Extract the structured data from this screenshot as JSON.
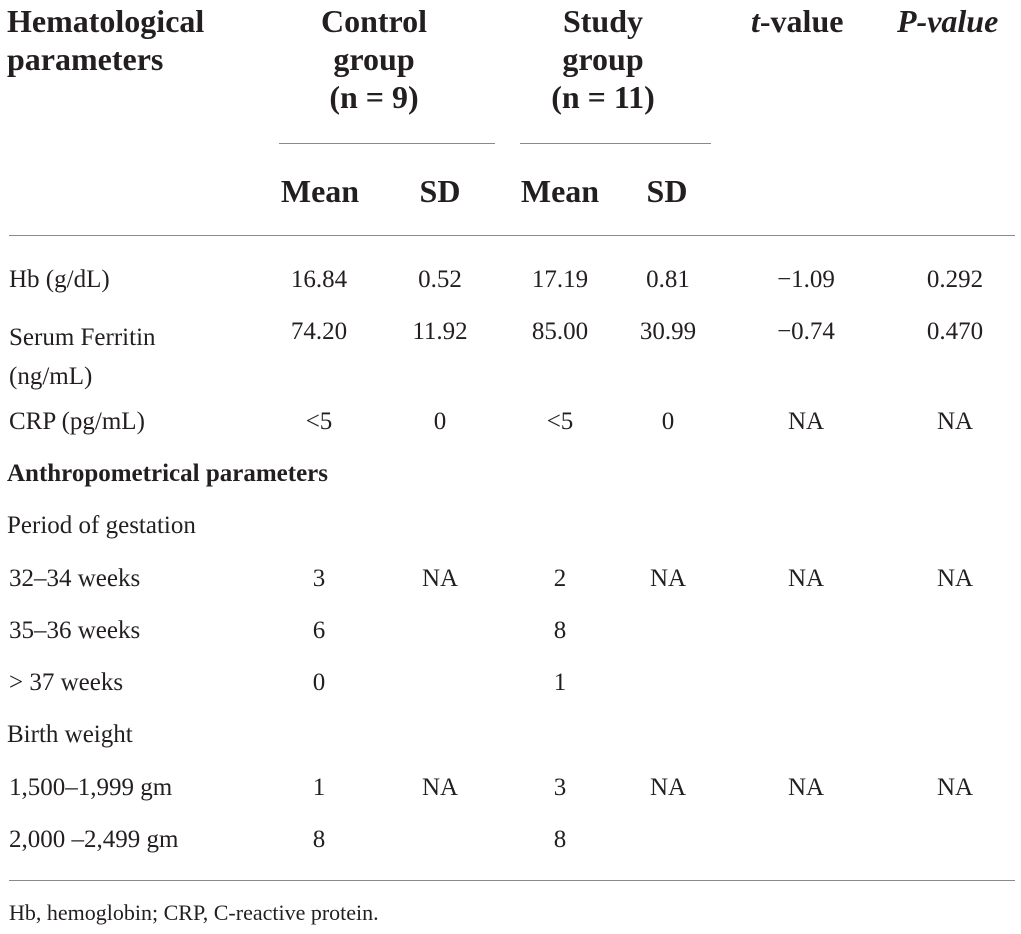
{
  "header": {
    "col1": [
      "Hematological",
      "parameters"
    ],
    "control": [
      "Control",
      "group",
      "(n = 9)"
    ],
    "study": [
      "Study",
      "group",
      "(n = 11)"
    ],
    "t_prefix": "t",
    "t_suffix": "-value",
    "p": "P-value",
    "mean": "Mean",
    "sd": "SD"
  },
  "rows": [
    {
      "label": "Hb (g/dL)",
      "cm": "16.84",
      "csd": "0.52",
      "sm": "17.19",
      "ssd": "0.81",
      "t": "−1.09",
      "p": "0.292"
    },
    {
      "label": "Serum Ferritin",
      "label2": "(ng/mL)",
      "cm": "74.20",
      "csd": "11.92",
      "sm": "85.00",
      "ssd": "30.99",
      "t": "−0.74",
      "p": "0.470"
    },
    {
      "label": "CRP (pg/mL)",
      "cm": "<5",
      "csd": "0",
      "sm": "<5",
      "ssd": "0",
      "t": "NA",
      "p": "NA"
    },
    {
      "section": "Anthropometrical parameters"
    },
    {
      "label": "Period of gestation"
    },
    {
      "label": "32–34 weeks",
      "cm": "3",
      "csd": "NA",
      "sm": "2",
      "ssd": "NA",
      "t": "NA",
      "p": "NA"
    },
    {
      "label": "35–36 weeks",
      "cm": "6",
      "sm": "8"
    },
    {
      "label": "> 37 weeks",
      "cm": "0",
      "sm": "1"
    },
    {
      "label": "Birth weight"
    },
    {
      "label": "1,500–1,999 gm",
      "cm": "1",
      "csd": "NA",
      "sm": "3",
      "ssd": "NA",
      "t": "NA",
      "p": "NA"
    },
    {
      "label": "2,000 –2,499 gm",
      "cm": "8",
      "sm": "8"
    }
  ],
  "footnote": "Hb, hemoglobin; CRP, C-reactive protein."
}
